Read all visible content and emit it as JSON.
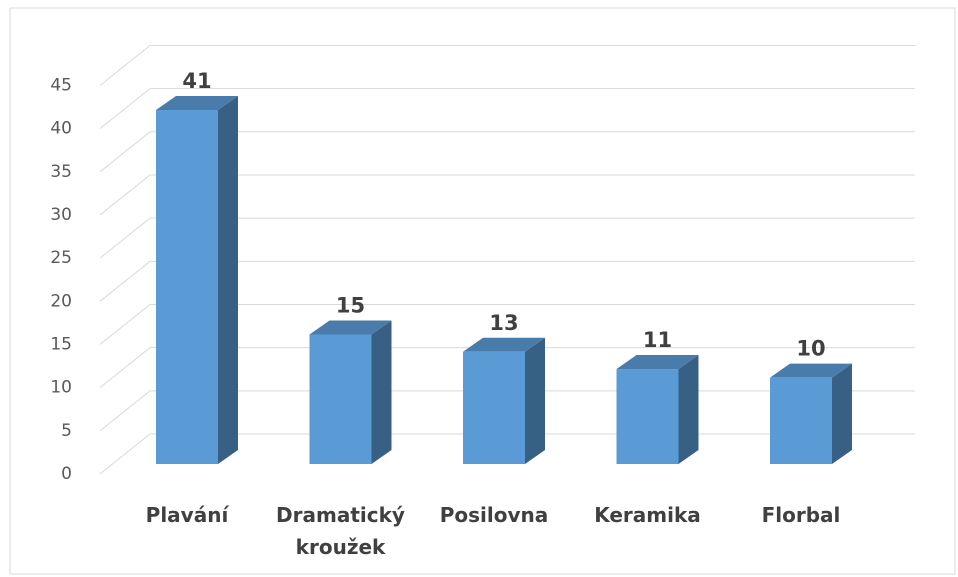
{
  "chart_data": {
    "type": "bar3d",
    "categories": [
      "Plavání",
      "Dramatický kroužek",
      "Posilovna",
      "Keramika",
      "Florbal"
    ],
    "values": [
      41,
      15,
      13,
      11,
      10
    ],
    "color": "#5b9bd5",
    "ylim": [
      0,
      45
    ],
    "yticks": [
      0,
      5,
      10,
      15,
      20,
      25,
      30,
      35,
      40,
      45
    ],
    "grid": true
  }
}
